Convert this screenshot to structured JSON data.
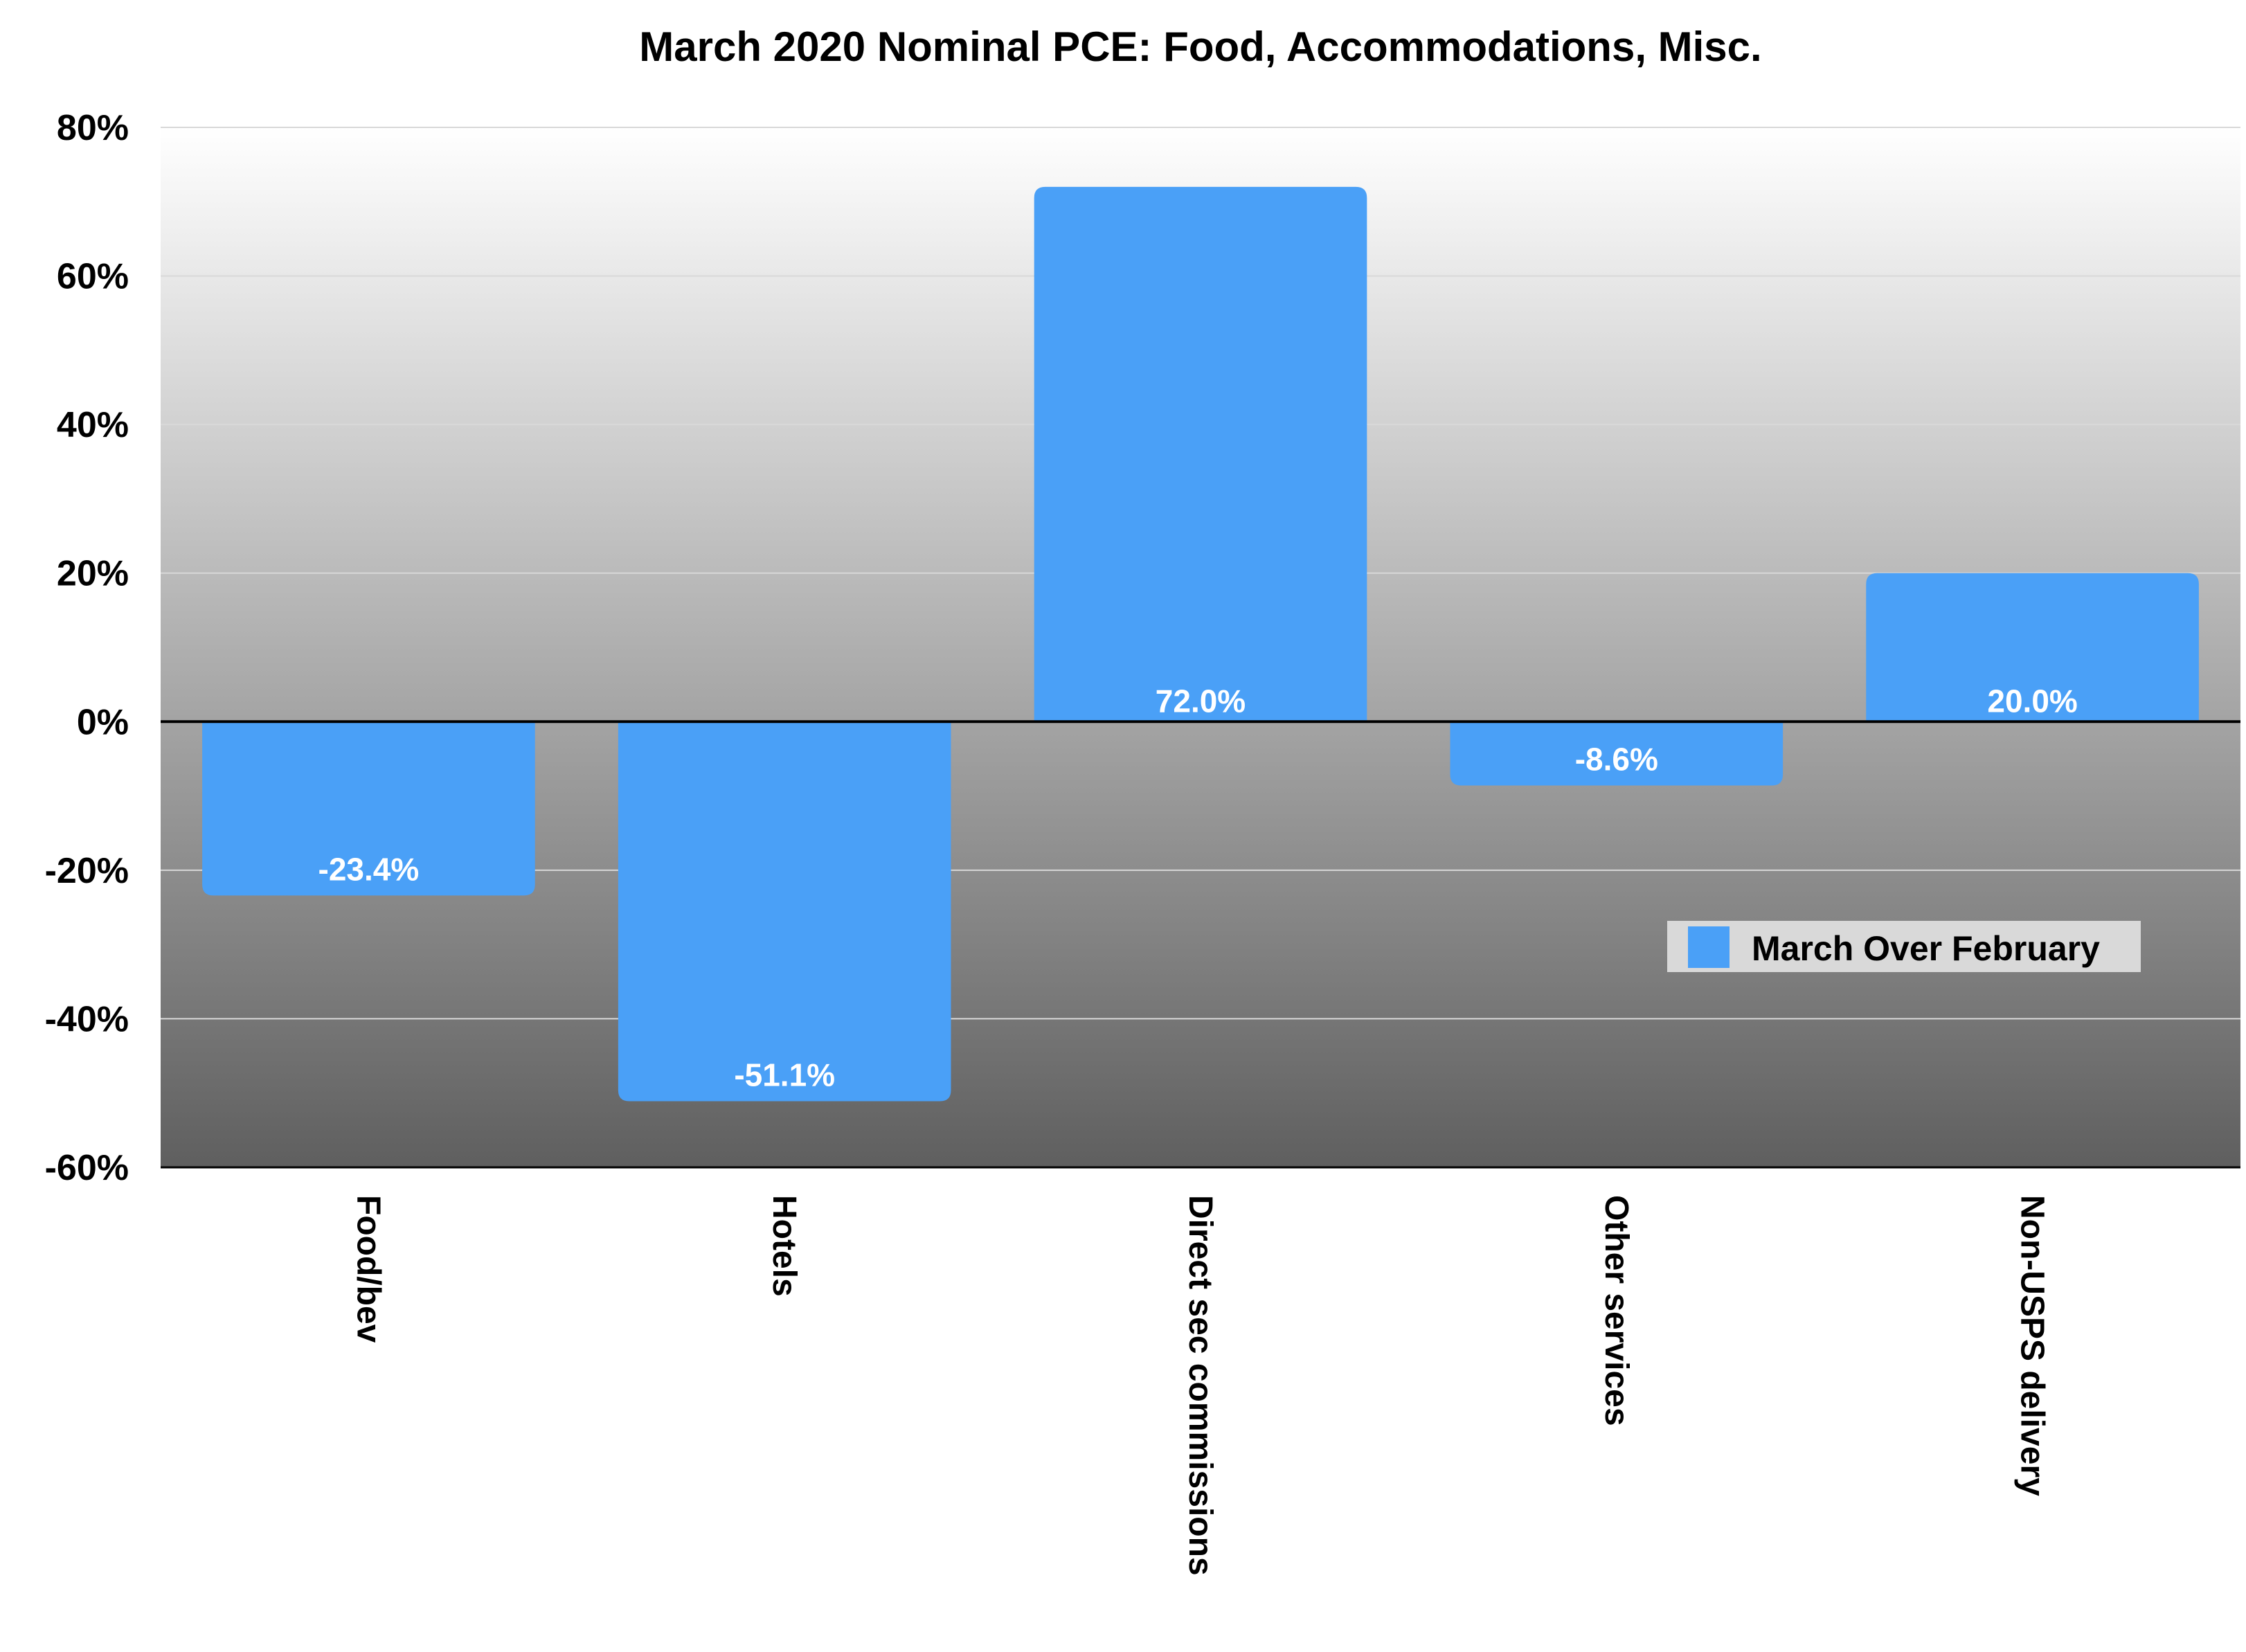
{
  "chart_data": {
    "type": "bar",
    "title": "March 2020 Nominal PCE: Food, Accommodations, Misc.",
    "xlabel": "",
    "ylabel": "",
    "categories": [
      "Food/bev",
      "Hotels",
      "Direct  sec commissions",
      "Other services",
      "Non-USPS delivery"
    ],
    "series": [
      {
        "name": "March Over February",
        "values": [
          -23.4,
          -51.1,
          72.0,
          -8.6,
          20.0
        ],
        "labels": [
          "-23.4%",
          "-51.1%",
          "72.0%",
          "-8.6%",
          "20.0%"
        ]
      }
    ],
    "ylim": [
      -60,
      80
    ],
    "yticks": [
      80,
      60,
      40,
      20,
      0,
      -20,
      -40,
      -60
    ],
    "ytick_labels": [
      "80%",
      "60%",
      "40%",
      "20%",
      "0%",
      "-20%",
      "-40%",
      "-60%"
    ],
    "grid": true,
    "legend_position": "right",
    "colors": {
      "bar": "#4aa0f7",
      "plot_bg_top": "#ffffff",
      "plot_bg_bottom": "#5f5f5f",
      "gridline": "#d8d8d8",
      "zero_line": "#000000",
      "legend_bg": "#d9d9d9"
    }
  }
}
